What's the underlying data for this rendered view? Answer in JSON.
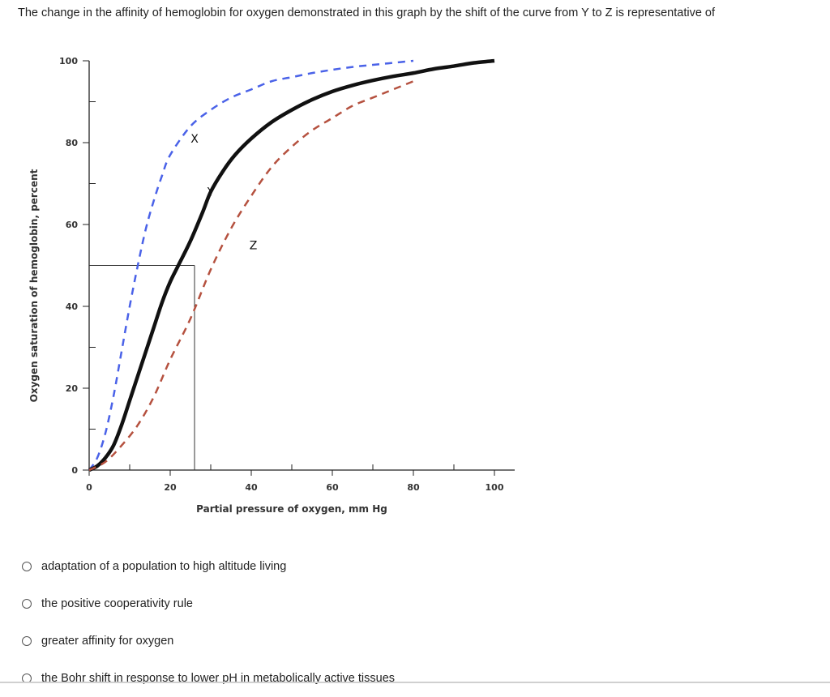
{
  "question": {
    "text": "The change in the affinity of hemoglobin for oxygen demonstrated in this graph by the shift of the curve from Y to Z is representative of"
  },
  "options": [
    {
      "label": "adaptation of a population to high altitude living"
    },
    {
      "label": "the positive cooperativity rule"
    },
    {
      "label": "greater affinity for oxygen"
    },
    {
      "label": "the Bohr shift in response to lower pH in metabolically active tissues"
    }
  ],
  "chart_data": {
    "type": "line",
    "xlabel": "Partial pressure of oxygen, mm Hg",
    "ylabel": "Oxygen saturation of hemoglobin, percent",
    "xlim": [
      0,
      100
    ],
    "ylim": [
      0,
      100
    ],
    "x_tick_labels": [
      "0",
      "20",
      "40",
      "60",
      "80",
      "100"
    ],
    "x_tick_values": [
      0,
      20,
      40,
      60,
      80,
      100
    ],
    "y_tick_labels": [
      "0",
      "20",
      "40",
      "60",
      "80",
      "100"
    ],
    "y_tick_values": [
      0,
      20,
      40,
      60,
      80,
      100
    ],
    "grid": false,
    "series": [
      {
        "name": "X",
        "style": "dashed",
        "color": "#4a62e8",
        "x": [
          0,
          2,
          4,
          6,
          8,
          10,
          12,
          14,
          16,
          18,
          20,
          25,
          30,
          35,
          40,
          45,
          50,
          55,
          60,
          65,
          70,
          75,
          80
        ],
        "y": [
          0,
          3,
          9,
          18,
          29,
          40,
          50,
          59,
          66,
          72,
          77,
          84,
          88,
          91,
          93,
          95,
          96,
          97,
          97.8,
          98.5,
          99,
          99.5,
          100
        ]
      },
      {
        "name": "Y",
        "style": "solid",
        "color": "#111111",
        "x": [
          0,
          2,
          4,
          6,
          8,
          10,
          12,
          14,
          16,
          18,
          20,
          22,
          25,
          28,
          30,
          33,
          36,
          40,
          45,
          50,
          55,
          60,
          65,
          70,
          75,
          80,
          85,
          90,
          95,
          100
        ],
        "y": [
          0,
          1,
          3,
          6,
          11,
          17,
          23,
          29,
          35,
          41,
          46,
          50,
          56,
          63,
          68,
          73,
          77,
          81,
          85,
          88,
          90.5,
          92.5,
          94,
          95.2,
          96.2,
          97,
          98,
          98.7,
          99.5,
          100
        ]
      },
      {
        "name": "Z",
        "style": "dashed",
        "color": "#b5513f",
        "x": [
          0,
          4,
          8,
          12,
          16,
          20,
          25,
          30,
          35,
          40,
          45,
          50,
          55,
          60,
          65,
          70,
          75,
          80
        ],
        "y": [
          0,
          2,
          6,
          11,
          18,
          27,
          37,
          49,
          59,
          67,
          74,
          79,
          83,
          86,
          89,
          91,
          93,
          95
        ]
      }
    ],
    "reference_point": {
      "x": 26,
      "y": 50
    }
  }
}
